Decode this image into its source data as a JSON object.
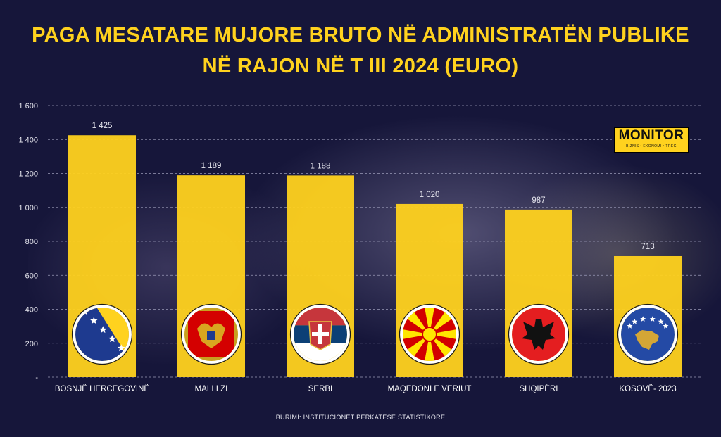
{
  "title_line1": "PAGA MESATARE MUJORE BRUTO NË ADMINISTRATËN PUBLIKE",
  "title_line2": "NË RAJON NË T III 2024 (EURO)",
  "source": "BURIMI: INSTITUCIONET PËRKATËSE STATISTIKORE",
  "logo": {
    "word": "MONITOR",
    "tagline": "BIZNIS • EKONOMI • TREG"
  },
  "colors": {
    "bar": "#ffd21e",
    "background": "#16163a",
    "title": "#ffd21e"
  },
  "chart_data": {
    "type": "bar",
    "title": "PAGA MESATARE MUJORE BRUTO NË ADMINISTRATËN PUBLIKE NË RAJON NË T III 2024 (EURO)",
    "categories": [
      "BOSNJË HERCEGOVINË",
      "MALI I ZI",
      "SERBI",
      "MAQEDONI E VERIUT",
      "SHQIPËRI",
      "KOSOVË- 2023"
    ],
    "values": [
      1425,
      1189,
      1188,
      1020,
      987,
      713
    ],
    "data_labels": [
      "1 425",
      "1 189",
      "1 188",
      "1 020",
      "987",
      "713"
    ],
    "flags": [
      "bosnia-flag-icon",
      "montenegro-flag-icon",
      "serbia-flag-icon",
      "north-macedonia-flag-icon",
      "albania-flag-icon",
      "kosovo-flag-icon"
    ],
    "ylim": [
      0,
      1600
    ],
    "yticks": [
      0,
      200,
      400,
      600,
      800,
      1000,
      1200,
      1400,
      1600
    ],
    "ytick_labels": [
      "-",
      "200",
      "400",
      "600",
      "800",
      "1 000",
      "1 200",
      "1 400",
      "1 600"
    ],
    "grid": "horizontal-dashed",
    "xlabel": "",
    "ylabel": ""
  }
}
